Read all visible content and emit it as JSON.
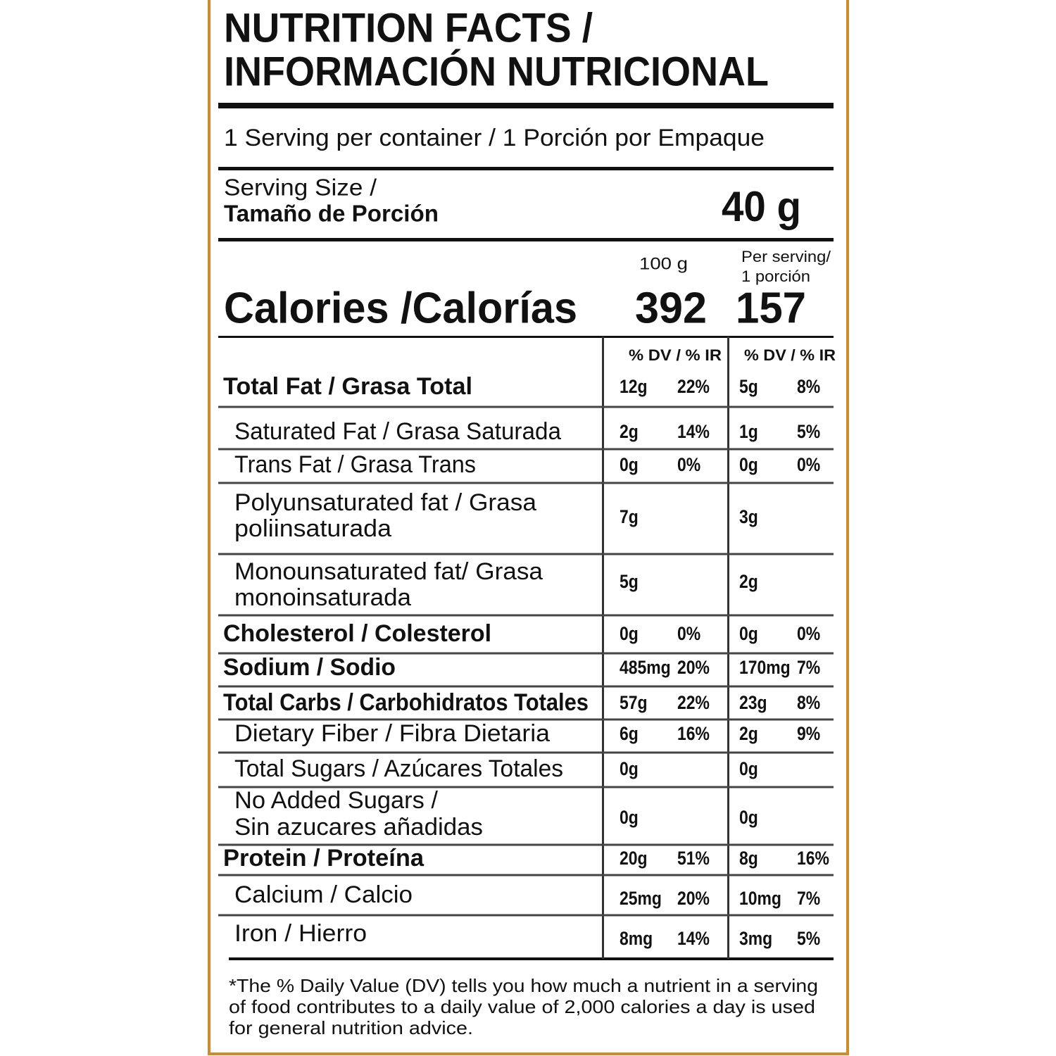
{
  "title": [
    "NUTRITION FACTS /",
    "INFORMACIÓN NUTRICIONAL"
  ],
  "servings_per_container": "1 Serving per container / 1 Porción por Empaque",
  "serving_size": {
    "label": [
      "Serving Size /",
      "Tamaño de Porción"
    ],
    "value": "40 g"
  },
  "columns": {
    "per_100g": "100 g",
    "per_serving": [
      "Per serving/",
      "1 porción"
    ]
  },
  "calories": {
    "label": "Calories /Calorías",
    "per_100g": 392,
    "per_serving": 157
  },
  "dv_headers": [
    "% DV / % IR",
    "% DV / % IR"
  ],
  "rows": [
    {
      "label": [
        "Total Fat / Grasa Total"
      ],
      "bold": true,
      "indent": false,
      "cells": [
        "12g",
        "22%",
        "5g",
        "8%"
      ]
    },
    {
      "label": [
        "Saturated Fat / Grasa Saturada"
      ],
      "bold": false,
      "indent": true,
      "cells": [
        "2g",
        "14%",
        "1g",
        "5%"
      ]
    },
    {
      "label": [
        "Trans Fat / Grasa Trans"
      ],
      "bold": false,
      "indent": true,
      "cells": [
        "0g",
        "0%",
        "0g",
        "0%"
      ]
    },
    {
      "label": [
        "Polyunsaturated fat / Grasa",
        "poliinsaturada"
      ],
      "bold": false,
      "indent": true,
      "cells": [
        "7g",
        null,
        "3g",
        null
      ]
    },
    {
      "label": [
        "Monounsaturated fat/ Grasa",
        "monoinsaturada"
      ],
      "bold": false,
      "indent": true,
      "cells": [
        "5g",
        null,
        "2g",
        null
      ]
    },
    {
      "label": [
        "Cholesterol / Colesterol"
      ],
      "bold": true,
      "indent": false,
      "cells": [
        "0g",
        "0%",
        "0g",
        "0%"
      ]
    },
    {
      "label": [
        "Sodium / Sodio"
      ],
      "bold": true,
      "indent": false,
      "cells": [
        "485mg",
        "20%",
        "170mg",
        "7%"
      ]
    },
    {
      "label": [
        "Total Carbs / Carbohidratos Totales"
      ],
      "bold": true,
      "indent": false,
      "cells": [
        "57g",
        "22%",
        "23g",
        "8%"
      ]
    },
    {
      "label": [
        "Dietary Fiber / Fibra Dietaria"
      ],
      "bold": false,
      "indent": true,
      "cells": [
        "6g",
        "16%",
        "2g",
        "9%"
      ]
    },
    {
      "label": [
        "Total Sugars / Azúcares Totales"
      ],
      "bold": false,
      "indent": true,
      "cells": [
        "0g",
        null,
        "0g",
        null
      ]
    },
    {
      "label": [
        "No Added Sugars /",
        "Sin azucares añadidas"
      ],
      "bold": false,
      "indent": true,
      "cells": [
        "0g",
        null,
        "0g",
        null
      ]
    },
    {
      "label": [
        "Protein / Proteína"
      ],
      "bold": true,
      "indent": false,
      "cells": [
        "20g",
        "51%",
        "8g",
        "16%"
      ]
    },
    {
      "label": [
        "Calcium / Calcio"
      ],
      "bold": false,
      "indent": true,
      "cells": [
        "25mg",
        "20%",
        "10mg",
        "7%"
      ]
    },
    {
      "label": [
        "Iron / Hierro"
      ],
      "bold": false,
      "indent": true,
      "cells": [
        "8mg",
        "14%",
        "3mg",
        "5%"
      ]
    }
  ],
  "footnote": [
    "*The % Daily Value (DV) tells you how much a nutrient in a serving",
    "of food contributes to a daily value of 2,000 calories a day is used",
    "for general nutrition advice."
  ]
}
